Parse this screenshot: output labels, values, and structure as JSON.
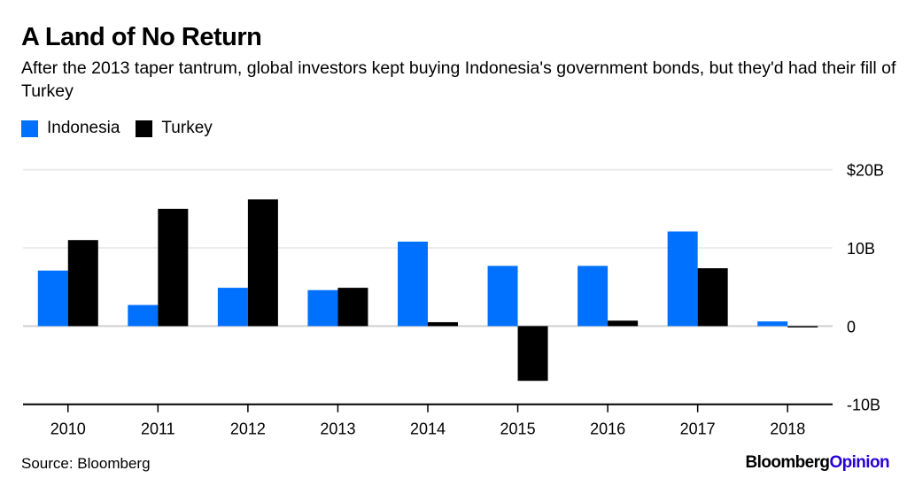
{
  "title": "A Land of No Return",
  "subtitle": "After the 2013 taper tantrum, global investors kept buying Indonesia's government bonds, but they'd had their fill of Turkey",
  "source": "Source: Bloomberg",
  "logo": {
    "brand": "Bloomberg",
    "suffix": "Opinion"
  },
  "chart_data": {
    "type": "bar",
    "categories": [
      "2010",
      "2011",
      "2012",
      "2013",
      "2014",
      "2015",
      "2016",
      "2017",
      "2018"
    ],
    "series": [
      {
        "name": "Indonesia",
        "color": "#0070ff",
        "values": [
          7.1,
          2.7,
          4.9,
          4.6,
          10.8,
          7.7,
          7.7,
          12.1,
          0.6
        ]
      },
      {
        "name": "Turkey",
        "color": "#000000",
        "values": [
          11.0,
          15.0,
          16.2,
          4.9,
          0.5,
          -7.0,
          0.7,
          7.4,
          -0.1
        ]
      }
    ],
    "ylim": [
      -10,
      20
    ],
    "yticks": [
      {
        "v": 20,
        "label": "$20B"
      },
      {
        "v": 10,
        "label": "10B"
      },
      {
        "v": 0,
        "label": "0"
      },
      {
        "v": -10,
        "label": "-10B"
      }
    ],
    "grid": true,
    "legend": "top-left"
  }
}
